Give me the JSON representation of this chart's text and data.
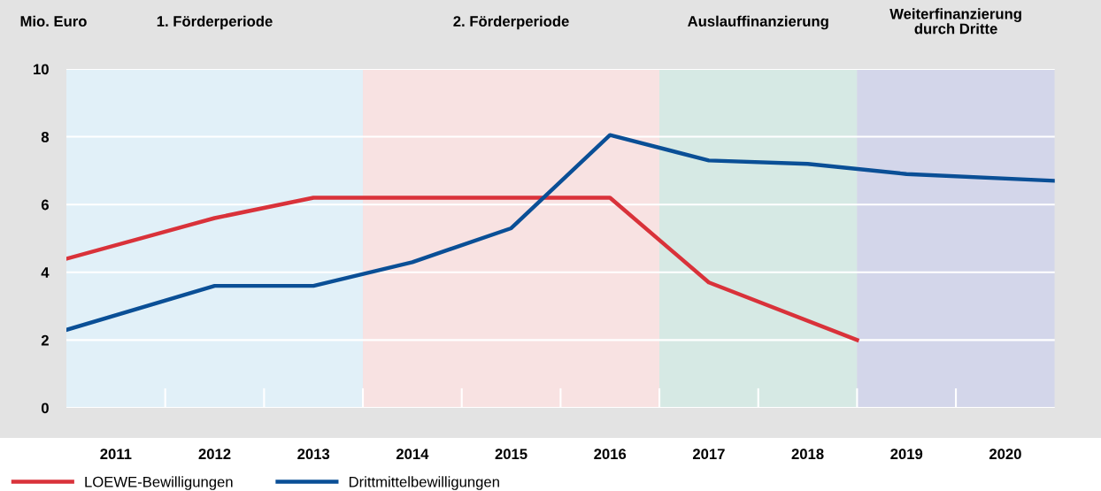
{
  "chart_data": {
    "type": "line",
    "ylabel": "Mio. Euro",
    "xlim": [
      2010.5,
      2020.5
    ],
    "xticks": [
      2011,
      2012,
      2013,
      2014,
      2015,
      2016,
      2017,
      2018,
      2019,
      2020
    ],
    "ylim": [
      0,
      10
    ],
    "yticks": [
      0,
      2,
      4,
      6,
      8,
      10
    ],
    "grid": "y",
    "legend": "bottom left",
    "marker": "none",
    "line_style": "solid",
    "series": [
      {
        "name": "LOEWE-Bewilligungen",
        "color": "#d9323a",
        "x": [
          2010.5,
          2012,
          2013,
          2014,
          2015,
          2016,
          2017,
          2018.5
        ],
        "values": [
          4.4,
          5.6,
          6.2,
          6.2,
          6.2,
          6.2,
          3.7,
          2.0
        ]
      },
      {
        "name": "Drittmittelbewilligungen",
        "color": "#0a4f96",
        "x": [
          2010.5,
          2012,
          2013,
          2014,
          2015,
          2016,
          2017,
          2018,
          2019,
          2020.5
        ],
        "values": [
          2.3,
          3.6,
          3.6,
          4.3,
          5.3,
          8.05,
          7.3,
          7.2,
          6.9,
          6.7
        ]
      }
    ],
    "bands": [
      {
        "axis": "x",
        "from": 2010.5,
        "to": 2013.5,
        "label": "1. Förderperiode",
        "color": "#e1f0f8"
      },
      {
        "axis": "x",
        "from": 2013.5,
        "to": 2016.5,
        "label": "2. Förderperiode",
        "color": "#f8e2e2"
      },
      {
        "axis": "x",
        "from": 2016.5,
        "to": 2018.5,
        "label": "Auslauffinanzierung",
        "color": "#d6e9e4"
      },
      {
        "axis": "x",
        "from": 2018.5,
        "to": 2020.5,
        "label": "Weiterfinanzierung\ndurch Dritte",
        "color": "#d3d6ea"
      }
    ]
  }
}
